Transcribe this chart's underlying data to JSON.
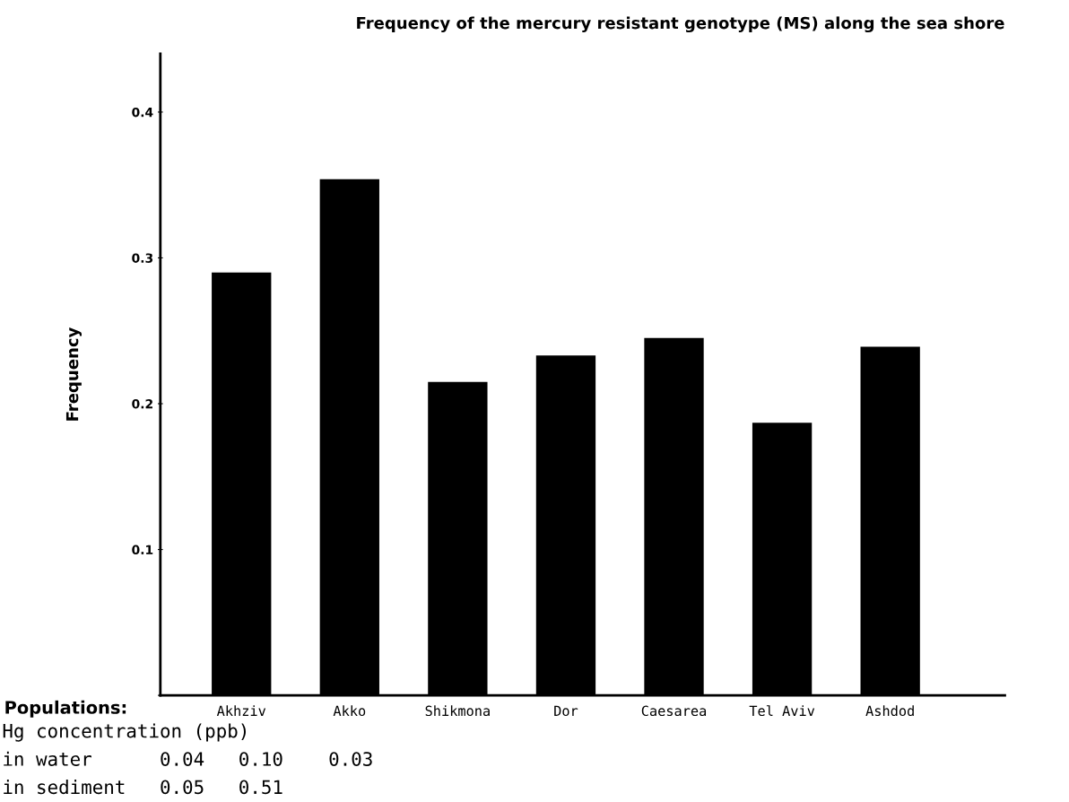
{
  "chart_data": {
    "type": "bar",
    "title": "Frequency of the mercury resistant genotype (MS) along the sea shore",
    "ylabel": "Frequency",
    "xlabel": "Populations:",
    "categories": [
      "Akhziv",
      "Akko",
      "Shikmona",
      "Dor",
      "Caesarea",
      "Tel Aviv",
      "Ashdod"
    ],
    "values": [
      0.29,
      0.354,
      0.215,
      0.233,
      0.245,
      0.187,
      0.239
    ],
    "color": "#000000",
    "ylim": [
      0,
      0.44
    ],
    "yticks": [
      {
        "value": 0,
        "label": null
      },
      0.1,
      0.2,
      0.3,
      0.4
    ],
    "grid": false,
    "annotations": [
      "Hg concentration (ppb)",
      "in water      0.04   0.10    0.03",
      "in sediment   0.05   0.51"
    ]
  }
}
